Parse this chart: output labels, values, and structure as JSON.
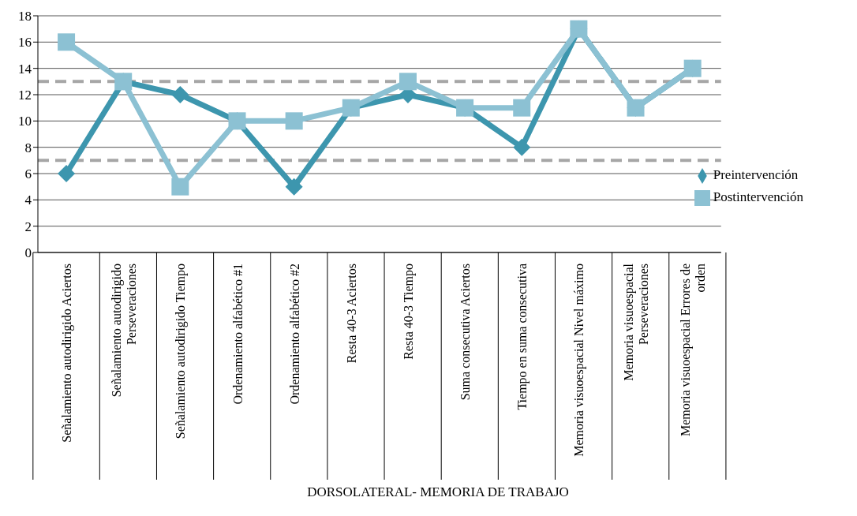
{
  "chart_data": {
    "type": "line",
    "xlabel": "DORSOLATERAL- MEMORIA DE TRABAJO",
    "categories": [
      "Señalamiento autodirigido Aciertos",
      "Señalamiento autodirigido Perseveraciones",
      "Señalamiento autodirigido Tiempo",
      "Ordenamiento alfabético #1",
      "Ordenamiento alfabético #2",
      "Resta 40-3 Aciertos",
      "Resta 40-3 Tiempo",
      "Suma consecutiva Aciertos",
      "Tiempo en suma consecutiva",
      "Memoria visuoespacial Nivel máximo",
      "Memoria visuoespacial Perseveraciones",
      "Memoria visuoespacial Errores de orden"
    ],
    "series": [
      {
        "name": "Preintervención",
        "color": "#3d96ae",
        "marker": "diamond",
        "values": [
          6,
          13,
          12,
          10,
          5,
          11,
          12,
          11,
          8,
          17,
          11,
          14
        ]
      },
      {
        "name": "Postintervención",
        "color": "#8cc1d3",
        "marker": "square",
        "values": [
          16,
          13,
          5,
          10,
          10,
          11,
          13,
          11,
          11,
          17,
          11,
          14
        ]
      }
    ],
    "ylim": [
      0,
      18
    ],
    "yticks": [
      0,
      2,
      4,
      6,
      8,
      10,
      12,
      14,
      16,
      18
    ],
    "grid": "y",
    "legend": "bottom right",
    "ref_lines": [
      {
        "axis": "y",
        "value": 13,
        "color": "#a6a6a6",
        "line_style": "dashed"
      },
      {
        "axis": "y",
        "value": 7,
        "color": "#a6a6a6",
        "line_style": "dashed"
      }
    ]
  }
}
